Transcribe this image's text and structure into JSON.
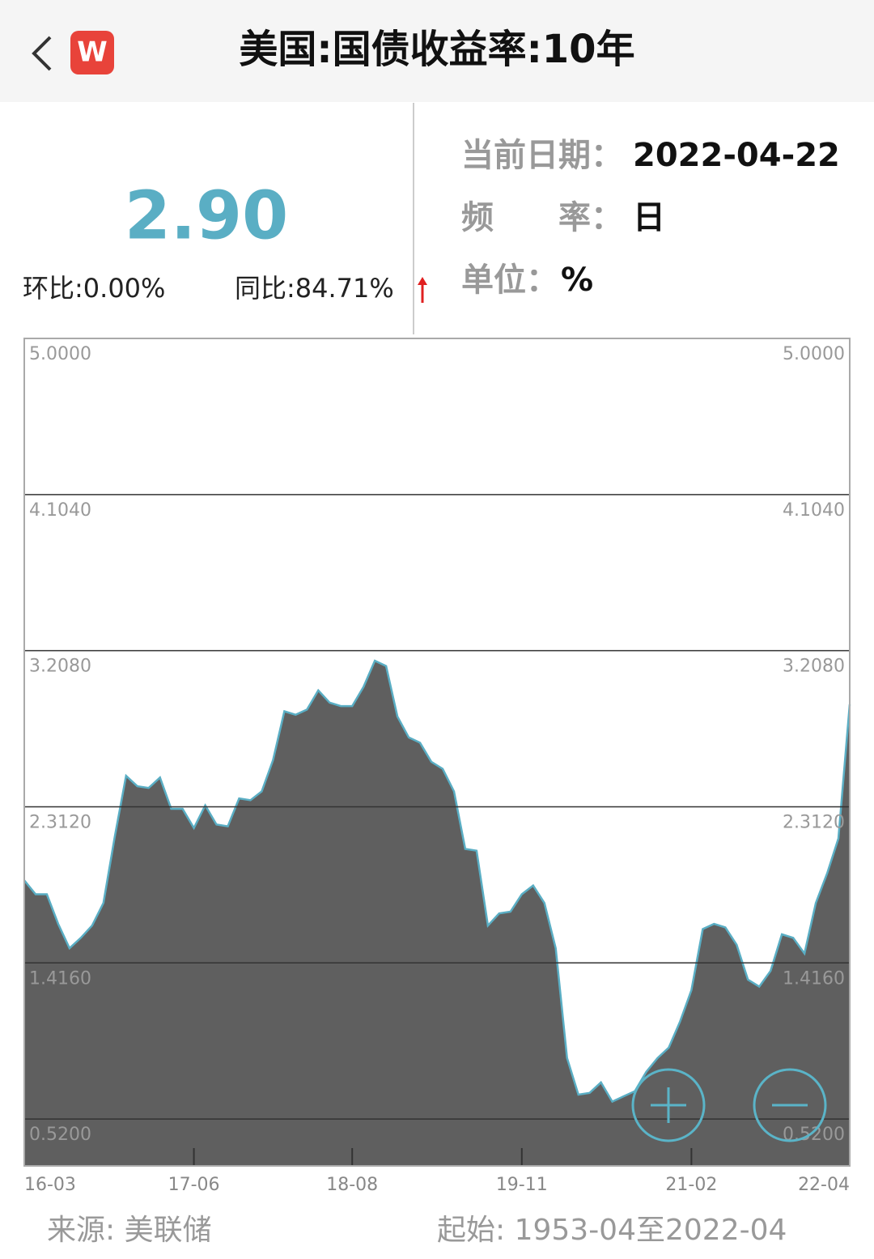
{
  "header": {
    "title": "美国:国债收益率:10年",
    "app_icon": "W"
  },
  "summary": {
    "value": "2.90",
    "mom": "环比:0.00%",
    "yoy": "同比:84.71%",
    "date_label": "当前日期：",
    "date": "2022-04-22",
    "freq_label": "频　　率：",
    "freq": "日",
    "unit_label": "单位：",
    "unit": "%"
  },
  "chart_data": {
    "type": "area",
    "fill_color": "#5f5f5f",
    "line_color": "#5aaec4",
    "categories": [
      "16-03",
      null,
      null,
      null,
      null,
      null,
      null,
      null,
      null,
      null,
      null,
      null,
      null,
      null,
      null,
      "17-06",
      null,
      null,
      null,
      null,
      null,
      null,
      null,
      null,
      null,
      null,
      null,
      null,
      null,
      "18-08",
      null,
      null,
      null,
      null,
      null,
      null,
      null,
      null,
      null,
      null,
      null,
      null,
      null,
      null,
      "19-11",
      null,
      null,
      null,
      null,
      null,
      null,
      null,
      null,
      null,
      null,
      null,
      null,
      null,
      null,
      "21-02",
      null,
      null,
      null,
      null,
      null,
      null,
      null,
      null,
      null,
      null,
      null,
      null,
      null,
      "22-04"
    ],
    "values": [
      1.89,
      1.81,
      1.81,
      1.64,
      1.5,
      1.56,
      1.63,
      1.76,
      2.14,
      2.49,
      2.43,
      2.42,
      2.48,
      2.3,
      2.3,
      2.19,
      2.32,
      2.21,
      2.2,
      2.36,
      2.35,
      2.4,
      2.58,
      2.86,
      2.84,
      2.87,
      2.98,
      2.91,
      2.89,
      2.89,
      3.0,
      3.15,
      3.12,
      2.83,
      2.71,
      2.68,
      2.57,
      2.53,
      2.4,
      2.07,
      2.06,
      1.63,
      1.7,
      1.71,
      1.81,
      1.86,
      1.76,
      1.5,
      0.87,
      0.66,
      0.67,
      0.73,
      0.62,
      0.65,
      0.68,
      0.79,
      0.87,
      0.93,
      1.08,
      1.26,
      1.61,
      1.64,
      1.62,
      1.52,
      1.32,
      1.28,
      1.37,
      1.58,
      1.56,
      1.47,
      1.76,
      1.93,
      2.13,
      2.9
    ],
    "ylim": [
      0.251,
      5
    ],
    "yticks": [
      {
        "value": 5,
        "label": "5.0000"
      },
      {
        "value": 4.104,
        "label": "4.1040"
      },
      {
        "value": 3.208,
        "label": "3.2080"
      },
      {
        "value": 2.312,
        "label": "2.3120"
      },
      {
        "value": 1.416,
        "label": "1.4160"
      },
      {
        "value": 0.52,
        "label": "0.5200"
      }
    ],
    "grid": true
  },
  "footer": {
    "source": "来源: 美联储",
    "range": "起始: 1953-04至2022-04"
  }
}
